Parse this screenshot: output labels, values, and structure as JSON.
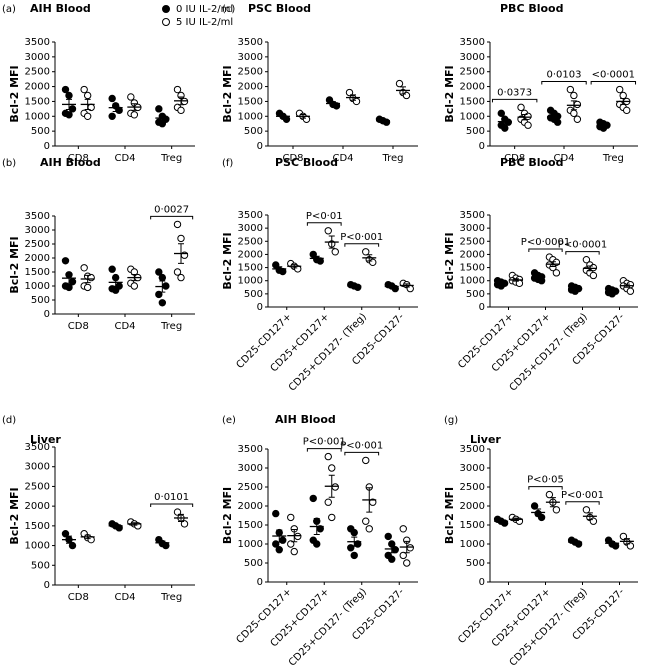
{
  "chart_data": [
    {
      "type": "dot",
      "panel": "(a)",
      "title": "AIH Blood",
      "y_label": "Bcl-2 MFI",
      "categories": [
        "CD8",
        "CD4",
        "Treg"
      ],
      "ylim": [
        0,
        3500
      ],
      "yticks": [
        0,
        500,
        1000,
        1500,
        2000,
        2500,
        3000,
        3500
      ],
      "series": [
        {
          "name": "0 IU IL-2/ml",
          "marker": "filled",
          "values": [
            [
              1900,
              1700,
              1250,
              1100,
              1050
            ],
            [
              1600,
              1350,
              1200,
              1000
            ],
            [
              1250,
              1000,
              900,
              800,
              750
            ]
          ],
          "mean": [
            1400,
            1290,
            940
          ],
          "sem": [
            170,
            130,
            90
          ]
        },
        {
          "name": "5 IU IL-2/ml",
          "marker": "open",
          "values": [
            [
              1900,
              1700,
              1300,
              1100,
              1000
            ],
            [
              1650,
              1450,
              1300,
              1100,
              1050
            ],
            [
              1900,
              1700,
              1500,
              1300,
              1200
            ]
          ],
          "mean": [
            1400,
            1310,
            1520
          ],
          "sem": [
            170,
            110,
            130
          ]
        }
      ],
      "annotations": []
    },
    {
      "type": "dot",
      "panel": "(c)",
      "title": "PSC Blood",
      "y_label": "Bcl-2 MFI",
      "categories": [
        "CD8",
        "CD4",
        "Treg"
      ],
      "ylim": [
        0,
        3500
      ],
      "yticks": [
        0,
        500,
        1000,
        1500,
        2000,
        2500,
        3000,
        3500
      ],
      "series": [
        {
          "marker": "filled",
          "values": [
            [
              1100,
              1000,
              900
            ],
            [
              1550,
              1400,
              1350
            ],
            [
              900,
              850,
              800
            ]
          ],
          "mean": [
            1000,
            1430,
            850
          ],
          "sem": [
            60,
            60,
            30
          ]
        },
        {
          "marker": "open",
          "values": [
            [
              1100,
              1000,
              900
            ],
            [
              1800,
              1600,
              1500
            ],
            [
              2100,
              1800,
              1700
            ]
          ],
          "mean": [
            1000,
            1630,
            1870
          ],
          "sem": [
            60,
            90,
            120
          ]
        }
      ],
      "annotations": []
    },
    {
      "type": "dot",
      "title": "PBC Blood",
      "y_label": "Bcl-2 MFI",
      "categories": [
        "CD8",
        "CD4",
        "Treg"
      ],
      "ylim": [
        0,
        3500
      ],
      "yticks": [
        0,
        500,
        1000,
        1500,
        2000,
        2500,
        3000,
        3500
      ],
      "series": [
        {
          "marker": "filled",
          "values": [
            [
              1100,
              900,
              800,
              700,
              600
            ],
            [
              1200,
              1100,
              1000,
              950,
              900,
              800
            ],
            [
              800,
              750,
              700,
              650,
              600
            ]
          ],
          "mean": [
            820,
            990,
            700
          ],
          "sem": [
            90,
            60,
            35
          ]
        },
        {
          "marker": "open",
          "values": [
            [
              1300,
              1100,
              1000,
              900,
              800,
              700
            ],
            [
              1900,
              1700,
              1400,
              1200,
              1100,
              900
            ],
            [
              1900,
              1700,
              1500,
              1400,
              1300,
              1200
            ]
          ],
          "mean": [
            970,
            1370,
            1500
          ],
          "sem": [
            90,
            150,
            100
          ]
        }
      ],
      "annotations": [
        {
          "category": "CD8",
          "text": "0·0373"
        },
        {
          "category": "CD4",
          "text": "0·0103"
        },
        {
          "category": "Treg",
          "text": "<0·0001"
        }
      ]
    },
    {
      "type": "dot",
      "panel": "(b)",
      "title": "AIH Blood",
      "y_label": "Bcl-2 MFI",
      "categories": [
        "CD8",
        "CD4",
        "Treg"
      ],
      "ylim": [
        0,
        3500
      ],
      "yticks": [
        0,
        500,
        1000,
        1500,
        2000,
        2500,
        3000,
        3500
      ],
      "series": [
        {
          "marker": "filled",
          "values": [
            [
              1900,
              1400,
              1150,
              1000,
              950
            ],
            [
              1600,
              1300,
              1000,
              900,
              850
            ],
            [
              1500,
              1300,
              1000,
              700,
              400
            ]
          ],
          "mean": [
            1280,
            1130,
            980
          ],
          "sem": [
            180,
            140,
            200
          ]
        },
        {
          "marker": "open",
          "values": [
            [
              1650,
              1350,
              1300,
              1000,
              950
            ],
            [
              1600,
              1500,
              1300,
              1100,
              1000
            ],
            [
              3200,
              2700,
              2100,
              1500,
              1300
            ]
          ],
          "mean": [
            1250,
            1300,
            2160
          ],
          "sem": [
            130,
            110,
            350
          ]
        }
      ],
      "annotations": [
        {
          "category": "Treg",
          "text": "0·0027"
        }
      ]
    },
    {
      "type": "dot",
      "panel": "(f)",
      "title": "PSC Blood",
      "y_label": "Bcl-2 MFI",
      "rotate_labels": true,
      "categories": [
        "CD25-CD127+",
        "CD25+CD127+",
        "CD25+CD127- (Treg)",
        "CD25-CD127-"
      ],
      "ylim": [
        0,
        3500
      ],
      "yticks": [
        0,
        500,
        1000,
        1500,
        2000,
        2500,
        3000,
        3500
      ],
      "series": [
        {
          "marker": "filled",
          "values": [
            [
              1600,
              1400,
              1350
            ],
            [
              2000,
              1800,
              1750
            ],
            [
              850,
              800,
              750
            ],
            [
              850,
              800,
              700
            ]
          ],
          "mean": [
            1450,
            1850,
            800,
            780
          ],
          "sem": [
            80,
            80,
            30,
            45
          ]
        },
        {
          "marker": "open",
          "values": [
            [
              1650,
              1550,
              1450
            ],
            [
              2900,
              2400,
              2100
            ],
            [
              2100,
              1800,
              1700
            ],
            [
              900,
              850,
              700
            ]
          ],
          "mean": [
            1550,
            2470,
            1870,
            820
          ],
          "sem": [
            60,
            230,
            120,
            60
          ]
        }
      ],
      "annotations": [
        {
          "category": "CD25+CD127+",
          "text": "P<0·01"
        },
        {
          "category": "CD25+CD127- (Treg)",
          "text": "P<0·001"
        }
      ]
    },
    {
      "type": "dot",
      "title": "PBC Blood",
      "y_label": "Bcl-2 MFI",
      "rotate_labels": true,
      "categories": [
        "CD25-CD127+",
        "CD25+CD127+",
        "CD25+CD127- (Treg)",
        "CD25-CD127-"
      ],
      "ylim": [
        0,
        3500
      ],
      "yticks": [
        0,
        500,
        1000,
        1500,
        2000,
        2500,
        3000,
        3500
      ],
      "series": [
        {
          "marker": "filled",
          "values": [
            [
              1000,
              950,
              900,
              850,
              800
            ],
            [
              1300,
              1200,
              1150,
              1100,
              1050,
              1000
            ],
            [
              800,
              750,
              700,
              650,
              600
            ],
            [
              700,
              650,
              600,
              550,
              500
            ]
          ],
          "mean": [
            900,
            1130,
            700,
            600
          ],
          "sem": [
            35,
            45,
            35,
            35
          ]
        },
        {
          "marker": "open",
          "values": [
            [
              1200,
              1100,
              1050,
              1000,
              950,
              900
            ],
            [
              1900,
              1800,
              1700,
              1600,
              1500,
              1300
            ],
            [
              1800,
              1600,
              1500,
              1400,
              1300,
              1200
            ],
            [
              1000,
              900,
              850,
              800,
              700,
              600
            ]
          ],
          "mean": [
            1030,
            1630,
            1470,
            810
          ],
          "sem": [
            45,
            90,
            90,
            60
          ]
        }
      ],
      "annotations": [
        {
          "category": "CD25+CD127+",
          "text": "P<0·0001"
        },
        {
          "category": "CD25+CD127- (Treg)",
          "text": "P<0·0001"
        }
      ]
    },
    {
      "type": "dot",
      "panel": "(d)",
      "title": "Liver",
      "y_label": "Bcl-2 MFI",
      "categories": [
        "CD8",
        "CD4",
        "Treg"
      ],
      "ylim": [
        0,
        3500
      ],
      "yticks": [
        0,
        500,
        1000,
        1500,
        2000,
        2500,
        3000,
        3500
      ],
      "series": [
        {
          "marker": "filled",
          "values": [
            [
              1300,
              1150,
              1000
            ],
            [
              1550,
              1500,
              1450
            ],
            [
              1150,
              1050,
              1000
            ]
          ],
          "mean": [
            1150,
            1500,
            1070
          ],
          "sem": [
            90,
            30,
            45
          ]
        },
        {
          "marker": "open",
          "values": [
            [
              1300,
              1200,
              1150
            ],
            [
              1600,
              1550,
              1500
            ],
            [
              1850,
              1700,
              1550
            ]
          ],
          "mean": [
            1220,
            1550,
            1700
          ],
          "sem": [
            45,
            30,
            90
          ]
        }
      ],
      "annotations": [
        {
          "category": "Treg",
          "text": "0·0101"
        }
      ]
    },
    {
      "type": "dot",
      "panel": "(e)",
      "title": "AIH Blood",
      "y_label": "Bcl-2 MFI",
      "rotate_labels": true,
      "categories": [
        "CD25-CD127+",
        "CD25+CD127+",
        "CD25+CD127- (Treg)",
        "CD25-CD127-"
      ],
      "ylim": [
        0,
        3500
      ],
      "yticks": [
        0,
        500,
        1000,
        1500,
        2000,
        2500,
        3000,
        3500
      ],
      "series": [
        {
          "marker": "filled",
          "values": [
            [
              1800,
              1300,
              1100,
              1000,
              850
            ],
            [
              2200,
              1600,
              1400,
              1100,
              1000
            ],
            [
              1400,
              1300,
              1000,
              900,
              700
            ],
            [
              1200,
              1000,
              850,
              700,
              600
            ]
          ],
          "mean": [
            1210,
            1460,
            1060,
            870
          ],
          "sem": [
            160,
            210,
            120,
            100
          ]
        },
        {
          "marker": "open",
          "values": [
            [
              1700,
              1400,
              1200,
              1000,
              800
            ],
            [
              3300,
              3000,
              2500,
              2100,
              1700
            ],
            [
              3200,
              2500,
              2100,
              1600,
              1400
            ],
            [
              1400,
              1100,
              900,
              700,
              500
            ]
          ],
          "mean": [
            1220,
            2520,
            2160,
            920
          ],
          "sem": [
            160,
            290,
            320,
            150
          ]
        }
      ],
      "annotations": [
        {
          "category": "CD25+CD127+",
          "text": "P<0·001"
        },
        {
          "category": "CD25+CD127- (Treg)",
          "text": "P<0·001"
        }
      ]
    },
    {
      "type": "dot",
      "panel": "(g)",
      "title": "Liver",
      "y_label": "Bcl-2 MFI",
      "rotate_labels": true,
      "categories": [
        "CD25-CD127+",
        "CD25+CD127+",
        "CD25+CD127- (Treg)",
        "CD25-CD127-"
      ],
      "ylim": [
        0,
        3500
      ],
      "yticks": [
        0,
        500,
        1000,
        1500,
        2000,
        2500,
        3000,
        3500
      ],
      "series": [
        {
          "marker": "filled",
          "values": [
            [
              1650,
              1600,
              1550
            ],
            [
              2000,
              1800,
              1700
            ],
            [
              1100,
              1050,
              1000
            ],
            [
              1100,
              1000,
              950
            ]
          ],
          "mean": [
            1600,
            1830,
            1050,
            1020
          ],
          "sem": [
            30,
            90,
            30,
            45
          ]
        },
        {
          "marker": "open",
          "values": [
            [
              1700,
              1650,
              1600
            ],
            [
              2300,
              2100,
              1900
            ],
            [
              1900,
              1700,
              1600
            ],
            [
              1200,
              1050,
              950
            ]
          ],
          "mean": [
            1650,
            2100,
            1730,
            1070
          ],
          "sem": [
            30,
            120,
            90,
            70
          ]
        }
      ],
      "annotations": [
        {
          "category": "CD25+CD127+",
          "text": "P<0·05"
        },
        {
          "category": "CD25+CD127- (Treg)",
          "text": "P<0·001"
        }
      ]
    }
  ]
}
